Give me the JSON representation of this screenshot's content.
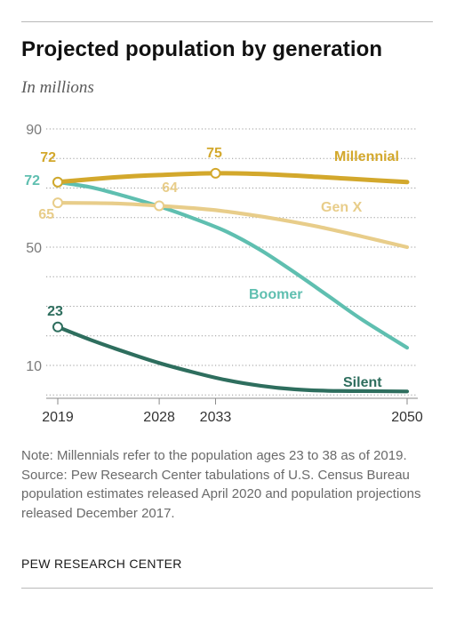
{
  "header": {
    "title": "Projected population by generation",
    "subtitle": "In millions"
  },
  "chart_data": {
    "type": "line",
    "title": "Projected population by generation",
    "subtitle": "In millions",
    "xlabel": "",
    "ylabel": "",
    "x_ticks": [
      2019,
      2028,
      2033,
      2050
    ],
    "y_ticks": [
      10,
      50,
      90
    ],
    "xlim": [
      2019,
      2050
    ],
    "ylim": [
      0,
      90
    ],
    "grid": "horizontal dotted",
    "legend": "inline labels at line ends",
    "series": [
      {
        "name": "Millennial",
        "color": "#d3a82c",
        "x": [
          2019,
          2024,
          2028,
          2033,
          2038,
          2042,
          2046,
          2050
        ],
        "values": [
          72,
          73.6,
          74.4,
          75,
          74.6,
          73.8,
          72.9,
          72
        ],
        "labeled_points": [
          {
            "x": 2019,
            "value": 72
          },
          {
            "x": 2033,
            "value": 75
          }
        ]
      },
      {
        "name": "Gen X",
        "color": "#e8cd8a",
        "x": [
          2019,
          2024,
          2028,
          2033,
          2038,
          2042,
          2046,
          2050
        ],
        "values": [
          65,
          64.8,
          64,
          62.5,
          59.8,
          57,
          53.6,
          50
        ],
        "labeled_points": [
          {
            "x": 2019,
            "value": 65
          },
          {
            "x": 2028,
            "value": 64
          }
        ]
      },
      {
        "name": "Boomer",
        "color": "#5fbfb0",
        "x": [
          2019,
          2022,
          2025,
          2028,
          2031,
          2034,
          2037,
          2040,
          2043,
          2046,
          2050
        ],
        "values": [
          72,
          70.2,
          67.2,
          63.8,
          59.8,
          55.2,
          49,
          41.5,
          33.5,
          25.5,
          16
        ],
        "labeled_points": [
          {
            "x": 2019,
            "value": 72
          }
        ]
      },
      {
        "name": "Silent",
        "color": "#2e6e5e",
        "x": [
          2019,
          2022,
          2025,
          2028,
          2031,
          2034,
          2037,
          2040,
          2043,
          2046,
          2050
        ],
        "values": [
          23,
          18.5,
          14.5,
          10.8,
          7.7,
          5,
          3.1,
          1.9,
          1.4,
          1.3,
          1.2
        ],
        "labeled_points": [
          {
            "x": 2019,
            "value": 23
          }
        ]
      }
    ]
  },
  "notes": {
    "note": "Note: Millennials refer to the population ages 23 to 38 as of 2019.",
    "source": "Source: Pew Research Center tabulations of U.S. Census Bureau population estimates released April 2020 and population projections released December 2017."
  },
  "footer": {
    "org": "PEW RESEARCH CENTER"
  }
}
